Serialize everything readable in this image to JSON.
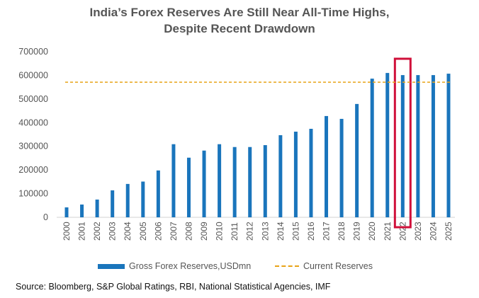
{
  "chart_data": {
    "type": "bar",
    "title": "India’s Forex Reserves Are Still Near All-Time Highs, Despite Recent Drawdown",
    "title_lines": [
      "India’s Forex Reserves Are Still Near All-Time Highs,",
      "Despite Recent Drawdown"
    ],
    "categories": [
      "2000",
      "2001",
      "2002",
      "2003",
      "2004",
      "2005",
      "2006",
      "2007",
      "2008",
      "2009",
      "2010",
      "2011",
      "2012",
      "2013",
      "2014",
      "2015",
      "2016",
      "2017",
      "2018",
      "2019",
      "2020",
      "2021",
      "2022",
      "2023",
      "2024",
      "2025"
    ],
    "series": [
      {
        "name": "Gross Forex Reserves,USDmn",
        "color": "#1a75bc",
        "values": [
          42000,
          54000,
          75000,
          114000,
          141000,
          151000,
          198000,
          309000,
          252000,
          282000,
          309000,
          297000,
          297000,
          305000,
          347000,
          362000,
          374000,
          428000,
          416000,
          479000,
          586000,
          610000,
          601000,
          601000,
          601000,
          607000
        ]
      }
    ],
    "reference_line": {
      "name": "Current Reserves",
      "value": 571000,
      "color": "#e8a317",
      "style": "dashed"
    },
    "highlight": {
      "category": "2022",
      "color": "#d0103a"
    },
    "ylim": [
      0,
      700000
    ],
    "yticks": [
      0,
      100000,
      200000,
      300000,
      400000,
      500000,
      600000,
      700000
    ],
    "ytick_labels": [
      "0",
      "100000",
      "200000",
      "300000",
      "400000",
      "500000",
      "600000",
      "700000"
    ],
    "xlabel": "",
    "ylabel": "",
    "grid": false,
    "legend_position": "bottom"
  },
  "source": "Source: Bloomberg, S&P Global Ratings, RBI, National Statistical Agencies, IMF"
}
